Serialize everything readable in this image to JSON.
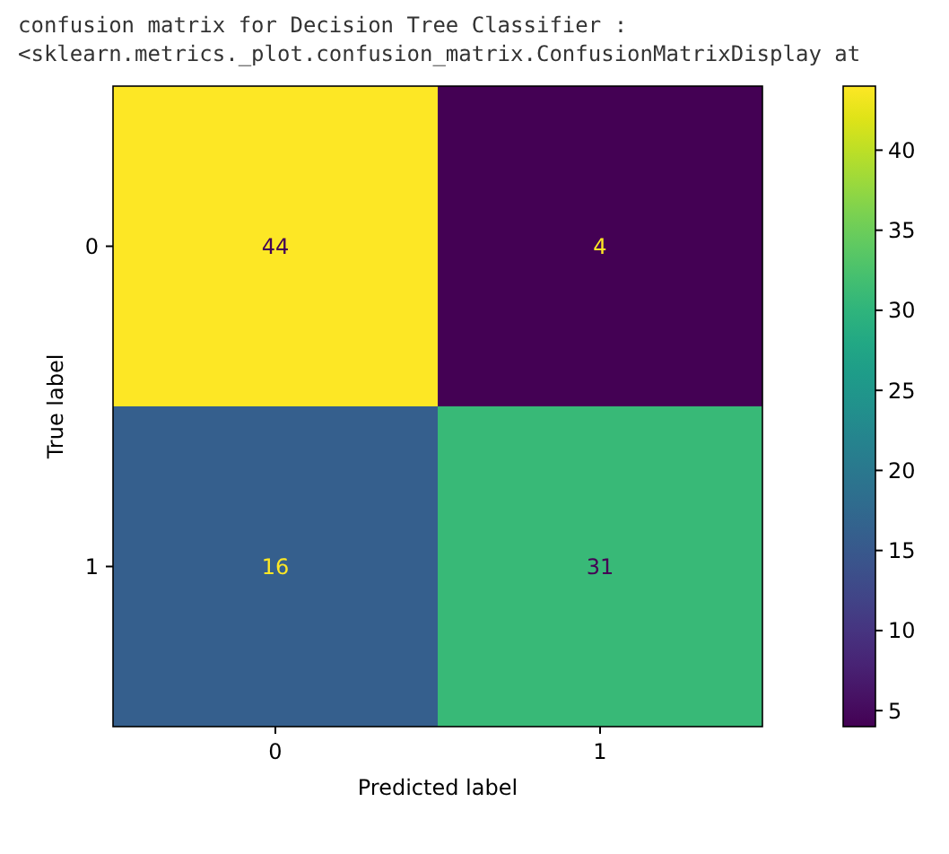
{
  "chart_data": {
    "type": "heatmap",
    "title": "confusion matrix for Decision Tree Classifier :",
    "subtitle": "<sklearn.metrics._plot.confusion_matrix.ConfusionMatrixDisplay at",
    "categories": [
      "0",
      "1"
    ],
    "y_categories": [
      "0",
      "1"
    ],
    "cells": [
      [
        44,
        4
      ],
      [
        16,
        31
      ]
    ],
    "clim": [
      4,
      44
    ],
    "cticks": [
      5,
      10,
      15,
      20,
      25,
      30,
      35,
      40
    ],
    "xlabel": "Predicted label",
    "ylabel": "True label",
    "data_labels": true
  }
}
